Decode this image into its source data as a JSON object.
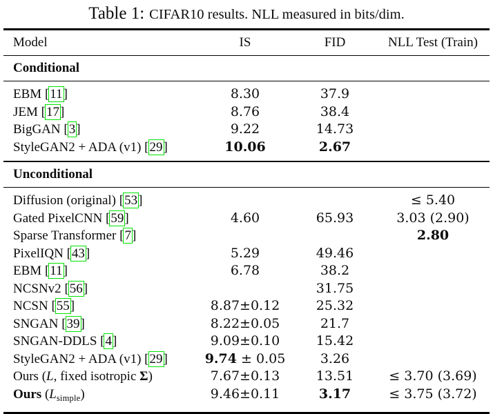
{
  "title": {
    "prefix": "Table 1:",
    "rest": "CIFAR10 results. NLL measured in bits/dim."
  },
  "header": {
    "columns": [
      "Model",
      "IS",
      "FID",
      "NLL Test (Train)"
    ]
  },
  "colors": {
    "citation_box": "#00e400",
    "rule": "#000000",
    "text": "#0b0b0b",
    "background": "#ffffff"
  },
  "sections": [
    {
      "label": "Conditional",
      "rows": [
        {
          "model": [
            {
              "t": "EBM "
            },
            {
              "t": "11",
              "cite": true
            }
          ],
          "is": [
            {
              "t": "8.30"
            }
          ],
          "fid": [
            {
              "t": "37.9"
            }
          ],
          "nll": []
        },
        {
          "model": [
            {
              "t": "JEM "
            },
            {
              "t": "17",
              "cite": true
            }
          ],
          "is": [
            {
              "t": "8.76"
            }
          ],
          "fid": [
            {
              "t": "38.4"
            }
          ],
          "nll": []
        },
        {
          "model": [
            {
              "t": "BigGAN "
            },
            {
              "t": "3",
              "cite": true
            }
          ],
          "is": [
            {
              "t": "9.22"
            }
          ],
          "fid": [
            {
              "t": "14.73"
            }
          ],
          "nll": []
        },
        {
          "model": [
            {
              "t": "StyleGAN2 + ADA (v1) "
            },
            {
              "t": "29",
              "cite": true
            }
          ],
          "is": [
            {
              "t": "10.06",
              "b": true
            }
          ],
          "fid": [
            {
              "t": "2.67",
              "b": true
            }
          ],
          "nll": []
        }
      ]
    },
    {
      "label": "Unconditional",
      "rows": [
        {
          "model": [
            {
              "t": "Diffusion (original) "
            },
            {
              "t": "53",
              "cite": true
            }
          ],
          "is": [],
          "fid": [],
          "nll": [
            {
              "t": "≤ 5.40"
            }
          ]
        },
        {
          "model": [
            {
              "t": "Gated PixelCNN "
            },
            {
              "t": "59",
              "cite": true
            }
          ],
          "is": [
            {
              "t": "4.60"
            }
          ],
          "fid": [
            {
              "t": "65.93"
            }
          ],
          "nll": [
            {
              "t": "3.03 (2.90)"
            }
          ]
        },
        {
          "model": [
            {
              "t": "Sparse Transformer "
            },
            {
              "t": "7",
              "cite": true
            }
          ],
          "is": [],
          "fid": [],
          "nll": [
            {
              "t": "2.80",
              "b": true
            }
          ]
        },
        {
          "model": [
            {
              "t": "PixelIQN "
            },
            {
              "t": "43",
              "cite": true
            }
          ],
          "is": [
            {
              "t": "5.29"
            }
          ],
          "fid": [
            {
              "t": "49.46"
            }
          ],
          "nll": []
        },
        {
          "model": [
            {
              "t": "EBM "
            },
            {
              "t": "11",
              "cite": true
            }
          ],
          "is": [
            {
              "t": "6.78"
            }
          ],
          "fid": [
            {
              "t": "38.2"
            }
          ],
          "nll": []
        },
        {
          "model": [
            {
              "t": "NCSNv2 "
            },
            {
              "t": "56",
              "cite": true
            }
          ],
          "is": [],
          "fid": [
            {
              "t": "31.75"
            }
          ],
          "nll": []
        },
        {
          "model": [
            {
              "t": "NCSN "
            },
            {
              "t": "55",
              "cite": true
            }
          ],
          "is": [
            {
              "t": "8.87±0.12"
            }
          ],
          "fid": [
            {
              "t": "25.32"
            }
          ],
          "nll": []
        },
        {
          "model": [
            {
              "t": "SNGAN "
            },
            {
              "t": "39",
              "cite": true
            }
          ],
          "is": [
            {
              "t": "8.22±0.05"
            }
          ],
          "fid": [
            {
              "t": "21.7"
            }
          ],
          "nll": []
        },
        {
          "model": [
            {
              "t": "SNGAN-DDLS "
            },
            {
              "t": "4",
              "cite": true
            }
          ],
          "is": [
            {
              "t": "9.09±0.10"
            }
          ],
          "fid": [
            {
              "t": "15.42"
            }
          ],
          "nll": []
        },
        {
          "model": [
            {
              "t": "StyleGAN2 + ADA (v1) "
            },
            {
              "t": "29",
              "cite": true
            }
          ],
          "is": [
            {
              "t": "9.74",
              "b": true
            },
            {
              "t": " ± 0.05"
            }
          ],
          "fid": [
            {
              "t": "3.26"
            }
          ],
          "nll": []
        },
        {
          "model": [
            {
              "t": "Ours ("
            },
            {
              "t": "L",
              "i": true
            },
            {
              "t": ", fixed isotropic "
            },
            {
              "t": "Σ",
              "b": true
            },
            {
              "t": ")"
            }
          ],
          "is": [
            {
              "t": "7.67±0.13"
            }
          ],
          "fid": [
            {
              "t": "13.51"
            }
          ],
          "nll": [
            {
              "t": "≤ 3.70 (3.69)"
            }
          ]
        },
        {
          "model": [
            {
              "t": "Ours ",
              "b": true
            },
            {
              "t": "("
            },
            {
              "t": "L",
              "i": true
            },
            {
              "t": "simple",
              "sub": true
            },
            {
              "t": ")"
            }
          ],
          "is": [
            {
              "t": "9.46±0.11"
            }
          ],
          "fid": [
            {
              "t": "3.17",
              "b": true
            }
          ],
          "nll": [
            {
              "t": "≤ 3.75 (3.72)"
            }
          ]
        }
      ]
    }
  ]
}
